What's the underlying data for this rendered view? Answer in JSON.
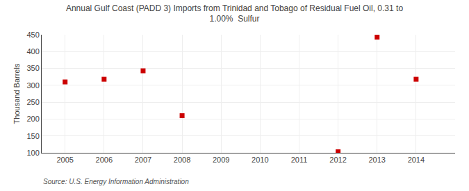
{
  "chart_data": {
    "type": "scatter",
    "title": "Annual Gulf Coast (PADD 3) Imports from Trinidad and Tobago of Residual Fuel Oil, 0.31 to\n1.00%  Sulfur",
    "y_label": "Thousand Barrels",
    "annotations": [
      "Source: U.S. Energy Information Administration"
    ],
    "x": [
      2005,
      2006,
      2007,
      2008,
      2012,
      2013,
      2014
    ],
    "values": [
      310,
      318,
      343,
      210,
      103,
      443,
      318
    ],
    "color": "#cc0000",
    "marker": "square",
    "xlim": [
      2004.4,
      2015.0
    ],
    "xticks": [
      2005,
      2006,
      2007,
      2008,
      2009,
      2010,
      2011,
      2012,
      2013,
      2014
    ],
    "ylim": [
      100,
      450
    ],
    "yticks": [
      100,
      150,
      200,
      250,
      300,
      350,
      400,
      450
    ],
    "grid": true
  }
}
